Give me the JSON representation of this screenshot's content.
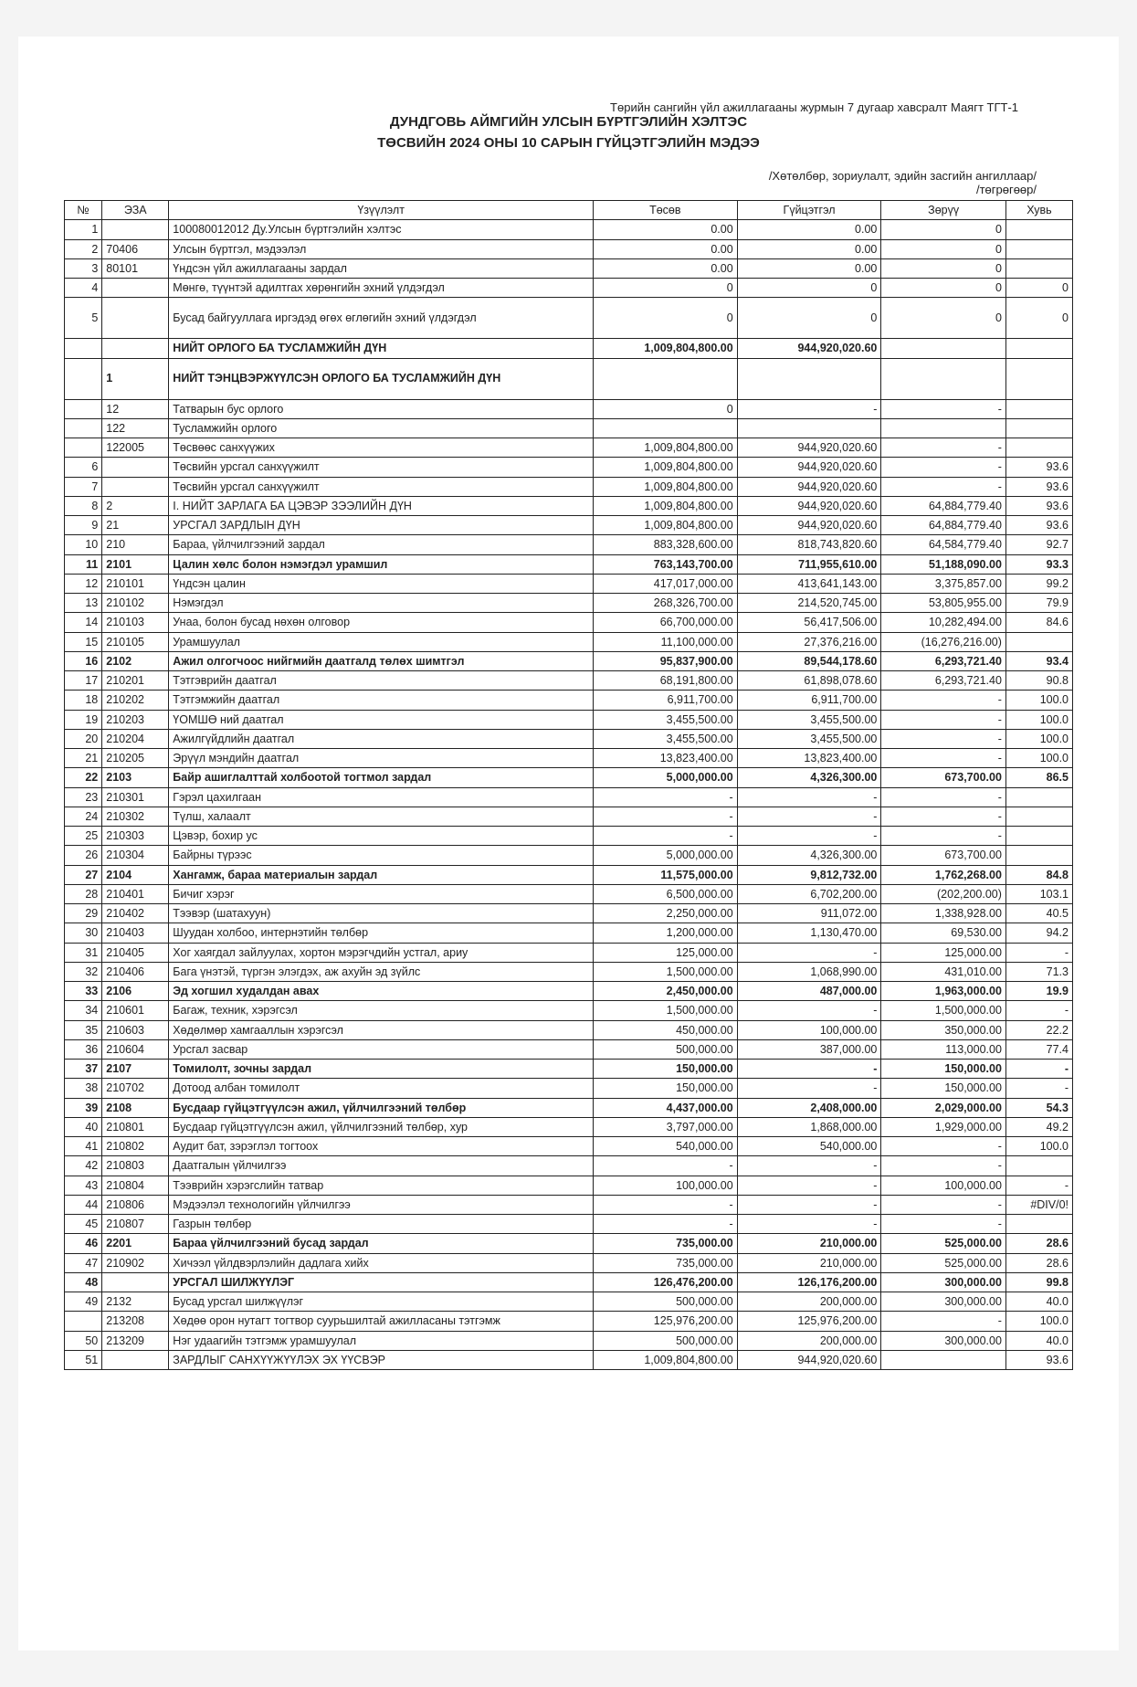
{
  "header": {
    "pretitle": "Төрийн сангийн үйл ажиллагааны журмын 7 дугаар хавсралт Маягт ТГТ-1",
    "line1": "ДУНДГОВЬ АЙМГИЙН УЛСЫН БҮРТГЭЛИЙН ХЭЛТЭС",
    "line2": "ТӨСВИЙН 2024 ОНЫ 10 САРЫН ГҮЙЦЭТГЭЛИЙН МЭДЭЭ",
    "sub1": "/Хөтөлбөр, зориулалт, эдийн засгийн ангиллаар/",
    "sub2": "/төгрөгөөр/"
  },
  "columns": {
    "num": "№",
    "code": "ЭЗА",
    "name": "Үзүүлэлт",
    "plan": "Төсөв",
    "exec": "Гүйцэтгэл",
    "diff": "Зөрүү",
    "pct": "Хувь"
  },
  "rows": [
    {
      "n": "1",
      "c": "",
      "name": "100080012012 Ду.Улсын бүртгэлийн хэлтэс",
      "p": "0.00",
      "e": "0.00",
      "d": "0",
      "pct": ""
    },
    {
      "n": "2",
      "c": "70406",
      "name": "Улсын бүртгэл, мэдээлэл",
      "p": "0.00",
      "e": "0.00",
      "d": "0",
      "pct": ""
    },
    {
      "n": "3",
      "c": "80101",
      "name": "Үндсэн үйл ажиллагааны зардал",
      "p": "0.00",
      "e": "0.00",
      "d": "0",
      "pct": ""
    },
    {
      "n": "4",
      "c": "",
      "name": "Мөнгө, түүнтэй адилтгах хөрөнгийн эхний үлдэгдэл",
      "p": "0",
      "e": "0",
      "d": "0",
      "pct": "0"
    },
    {
      "n": "5",
      "c": "",
      "name": "Бусад байгууллага иргэдэд өгөх өглөгийн эхний үлдэгдэл",
      "p": "0",
      "e": "0",
      "d": "0",
      "pct": "0",
      "tall": true
    },
    {
      "n": "",
      "c": "",
      "name": "НИЙТ ОРЛОГО БА ТУСЛАМЖИЙН ДҮН",
      "p": "1,009,804,800.00",
      "e": "944,920,020.60",
      "d": "",
      "pct": "",
      "bold": true
    },
    {
      "n": "",
      "c": "1",
      "name": "НИЙТ ТЭНЦВЭРЖҮҮЛСЭН ОРЛОГО БА ТУСЛАМЖИЙН ДҮН",
      "p": "",
      "e": "",
      "d": "",
      "pct": "",
      "bold": true,
      "tall": true
    },
    {
      "n": "",
      "c": "12",
      "name": "Татварын бус орлого",
      "p": "0",
      "e": "-",
      "d": "-",
      "pct": ""
    },
    {
      "n": "",
      "c": "122",
      "name": "Тусламжийн орлого",
      "p": "",
      "e": "",
      "d": "",
      "pct": ""
    },
    {
      "n": "",
      "c": "122005",
      "name": "Төсвөөс санхүүжих",
      "p": "1,009,804,800.00",
      "e": "944,920,020.60",
      "d": "-",
      "pct": ""
    },
    {
      "n": "6",
      "c": "",
      "name": "Төсвийн урсгал санхүүжилт",
      "p": "1,009,804,800.00",
      "e": "944,920,020.60",
      "d": "-",
      "pct": "93.6"
    },
    {
      "n": "7",
      "c": "",
      "name": "Төсвийн урсгал санхүүжилт",
      "p": "1,009,804,800.00",
      "e": "944,920,020.60",
      "d": "-",
      "pct": "93.6"
    },
    {
      "n": "8",
      "c": "2",
      "name": "I. НИЙТ ЗАРЛАГА БА ЦЭВЭР ЗЭЭЛИЙН ДҮН",
      "p": "1,009,804,800.00",
      "e": "944,920,020.60",
      "d": "64,884,779.40",
      "pct": "93.6"
    },
    {
      "n": "9",
      "c": "21",
      "name": "УРСГАЛ ЗАРДЛЫН ДҮН",
      "p": "1,009,804,800.00",
      "e": "944,920,020.60",
      "d": "64,884,779.40",
      "pct": "93.6"
    },
    {
      "n": "10",
      "c": "210",
      "name": "Бараа, үйлчилгээний зардал",
      "p": "883,328,600.00",
      "e": "818,743,820.60",
      "d": "64,584,779.40",
      "pct": "92.7"
    },
    {
      "n": "11",
      "c": "2101",
      "name": "Цалин хөлс болон нэмэгдэл урамшил",
      "p": "763,143,700.00",
      "e": "711,955,610.00",
      "d": "51,188,090.00",
      "pct": "93.3",
      "bold": true
    },
    {
      "n": "12",
      "c": "210101",
      "name": "Үндсэн цалин",
      "p": "417,017,000.00",
      "e": "413,641,143.00",
      "d": "3,375,857.00",
      "pct": "99.2"
    },
    {
      "n": "13",
      "c": "210102",
      "name": "Нэмэгдэл",
      "p": "268,326,700.00",
      "e": "214,520,745.00",
      "d": "53,805,955.00",
      "pct": "79.9"
    },
    {
      "n": "14",
      "c": "210103",
      "name": "Унаа, болон бусад нөхөн олговор",
      "p": "66,700,000.00",
      "e": "56,417,506.00",
      "d": "10,282,494.00",
      "pct": "84.6"
    },
    {
      "n": "15",
      "c": "210105",
      "name": "Урамшуулал",
      "p": "11,100,000.00",
      "e": "27,376,216.00",
      "d": "(16,276,216.00)",
      "pct": ""
    },
    {
      "n": "16",
      "c": "2102",
      "name": "Ажил олгогчоос нийгмийн даатгалд төлөх шимтгэл",
      "p": "95,837,900.00",
      "e": "89,544,178.60",
      "d": "6,293,721.40",
      "pct": "93.4",
      "bold": true
    },
    {
      "n": "17",
      "c": "210201",
      "name": "Тэтгэврийн даатгал",
      "p": "68,191,800.00",
      "e": "61,898,078.60",
      "d": "6,293,721.40",
      "pct": "90.8"
    },
    {
      "n": "18",
      "c": "210202",
      "name": "Тэтгэмжийн даатгал",
      "p": "6,911,700.00",
      "e": "6,911,700.00",
      "d": "-",
      "pct": "100.0"
    },
    {
      "n": "19",
      "c": "210203",
      "name": "ҮОМШӨ ний даатгал",
      "p": "3,455,500.00",
      "e": "3,455,500.00",
      "d": "-",
      "pct": "100.0"
    },
    {
      "n": "20",
      "c": "210204",
      "name": "Ажилгүйдлийн даатгал",
      "p": "3,455,500.00",
      "e": "3,455,500.00",
      "d": "-",
      "pct": "100.0"
    },
    {
      "n": "21",
      "c": "210205",
      "name": "Эрүүл мэндийн даатгал",
      "p": "13,823,400.00",
      "e": "13,823,400.00",
      "d": "-",
      "pct": "100.0"
    },
    {
      "n": "22",
      "c": "2103",
      "name": "Байр ашиглалттай холбоотой тогтмол зардал",
      "p": "5,000,000.00",
      "e": "4,326,300.00",
      "d": "673,700.00",
      "pct": "86.5",
      "bold": true
    },
    {
      "n": "23",
      "c": "210301",
      "name": "Гэрэл цахилгаан",
      "p": "-",
      "e": "-",
      "d": "-",
      "pct": ""
    },
    {
      "n": "24",
      "c": "210302",
      "name": "Түлш, халаалт",
      "p": "-",
      "e": "-",
      "d": "-",
      "pct": ""
    },
    {
      "n": "25",
      "c": "210303",
      "name": "Цэвэр, бохир ус",
      "p": "-",
      "e": "-",
      "d": "-",
      "pct": ""
    },
    {
      "n": "26",
      "c": "210304",
      "name": "Байрны түрээс",
      "p": "5,000,000.00",
      "e": "4,326,300.00",
      "d": "673,700.00",
      "pct": ""
    },
    {
      "n": "27",
      "c": "2104",
      "name": "Хангамж, бараа материалын зардал",
      "p": "11,575,000.00",
      "e": "9,812,732.00",
      "d": "1,762,268.00",
      "pct": "84.8",
      "bold": true
    },
    {
      "n": "28",
      "c": "210401",
      "name": "Бичиг хэрэг",
      "p": "6,500,000.00",
      "e": "6,702,200.00",
      "d": "(202,200.00)",
      "pct": "103.1"
    },
    {
      "n": "29",
      "c": "210402",
      "name": "Тээвэр (шатахуун)",
      "p": "2,250,000.00",
      "e": "911,072.00",
      "d": "1,338,928.00",
      "pct": "40.5"
    },
    {
      "n": "30",
      "c": "210403",
      "name": "Шуудан  холбоо, интернэтийн төлбөр",
      "p": "1,200,000.00",
      "e": "1,130,470.00",
      "d": "69,530.00",
      "pct": "94.2"
    },
    {
      "n": "31",
      "c": "210405",
      "name": "Хог хаягдал зайлуулах, хортон мэрэгчдийн устгал, ариу",
      "p": "125,000.00",
      "e": "-",
      "d": "125,000.00",
      "pct": "-"
    },
    {
      "n": "32",
      "c": "210406",
      "name": "Бага үнэтэй, түргэн элэгдэх, аж ахуйн эд зүйлс",
      "p": "1,500,000.00",
      "e": "1,068,990.00",
      "d": "431,010.00",
      "pct": "71.3"
    },
    {
      "n": "33",
      "c": "2106",
      "name": "Эд хогшил худалдан авах",
      "p": "2,450,000.00",
      "e": "487,000.00",
      "d": "1,963,000.00",
      "pct": "19.9",
      "bold": true
    },
    {
      "n": "34",
      "c": "210601",
      "name": "Багаж, техник, хэрэгсэл",
      "p": "1,500,000.00",
      "e": "-",
      "d": "1,500,000.00",
      "pct": "-"
    },
    {
      "n": "35",
      "c": "210603",
      "name": "Хөдөлмөр хамгааллын хэрэгсэл",
      "p": "450,000.00",
      "e": "100,000.00",
      "d": "350,000.00",
      "pct": "22.2"
    },
    {
      "n": "36",
      "c": "210604",
      "name": "Урсгал засвар",
      "p": "500,000.00",
      "e": "387,000.00",
      "d": "113,000.00",
      "pct": "77.4"
    },
    {
      "n": "37",
      "c": "2107",
      "name": "Томилолт, зочны зардал",
      "p": "150,000.00",
      "e": "-",
      "d": "150,000.00",
      "pct": "-",
      "bold": true
    },
    {
      "n": "38",
      "c": "210702",
      "name": "Дотоод албан томилолт",
      "p": "150,000.00",
      "e": "-",
      "d": "150,000.00",
      "pct": "-"
    },
    {
      "n": "39",
      "c": "2108",
      "name": "Бусдаар гүйцэтгүүлсэн ажил, үйлчилгээний төлбөр",
      "p": "4,437,000.00",
      "e": "2,408,000.00",
      "d": "2,029,000.00",
      "pct": "54.3",
      "bold": true
    },
    {
      "n": "40",
      "c": "210801",
      "name": "Бусдаар гүйцэтгүүлсэн ажил, үйлчилгээний төлбөр, хур",
      "p": "3,797,000.00",
      "e": "1,868,000.00",
      "d": "1,929,000.00",
      "pct": "49.2"
    },
    {
      "n": "41",
      "c": "210802",
      "name": "Аудит бат, зэрэглэл тогтоох",
      "p": "540,000.00",
      "e": "540,000.00",
      "d": "-",
      "pct": "100.0"
    },
    {
      "n": "42",
      "c": "210803",
      "name": "Даатгалын үйлчилгээ",
      "p": "-",
      "e": "-",
      "d": "-",
      "pct": ""
    },
    {
      "n": "43",
      "c": "210804",
      "name": "Тээврийн хэрэгслийн татвар",
      "p": "100,000.00",
      "e": "-",
      "d": "100,000.00",
      "pct": "-"
    },
    {
      "n": "44",
      "c": "210806",
      "name": "Мэдээлэл технологийн үйлчилгээ",
      "p": "-",
      "e": "-",
      "d": "-",
      "pct": "#DIV/0!"
    },
    {
      "n": "45",
      "c": "210807",
      "name": "Газрын төлбөр",
      "p": "-",
      "e": "-",
      "d": "-",
      "pct": ""
    },
    {
      "n": "46",
      "c": "2201",
      "name": "Бараа үйлчилгээний бусад зардал",
      "p": "735,000.00",
      "e": "210,000.00",
      "d": "525,000.00",
      "pct": "28.6",
      "bold": true
    },
    {
      "n": "47",
      "c": "210902",
      "name": "Хичээл үйлдвэрлэлийн дадлага хийх",
      "p": "735,000.00",
      "e": "210,000.00",
      "d": "525,000.00",
      "pct": "28.6"
    },
    {
      "n": "48",
      "c": "",
      "name": "УРСГАЛ ШИЛЖҮҮЛЭГ",
      "p": "126,476,200.00",
      "e": "126,176,200.00",
      "d": "300,000.00",
      "pct": "99.8",
      "bold": true
    },
    {
      "n": "49",
      "c": "2132",
      "name": "Бусад урсгал шилжүүлэг",
      "p": "500,000.00",
      "e": "200,000.00",
      "d": "300,000.00",
      "pct": "40.0"
    },
    {
      "n": "",
      "c": "213208",
      "name": "Хөдөө орон нутагт тогтвор суурьшилтай ажилласаны тэтгэмж",
      "p": "125,976,200.00",
      "e": "125,976,200.00",
      "d": "-",
      "pct": "100.0"
    },
    {
      "n": "50",
      "c": "213209",
      "name": "Нэг удаагийн тэтгэмж урамшуулал",
      "p": "500,000.00",
      "e": "200,000.00",
      "d": "300,000.00",
      "pct": "40.0"
    },
    {
      "n": "51",
      "c": "",
      "name": "ЗАРДЛЫГ САНХҮҮЖҮҮЛЭХ ЭХ ҮҮСВЭР",
      "p": "1,009,804,800.00",
      "e": "944,920,020.60",
      "d": "",
      "pct": "93.6"
    }
  ]
}
